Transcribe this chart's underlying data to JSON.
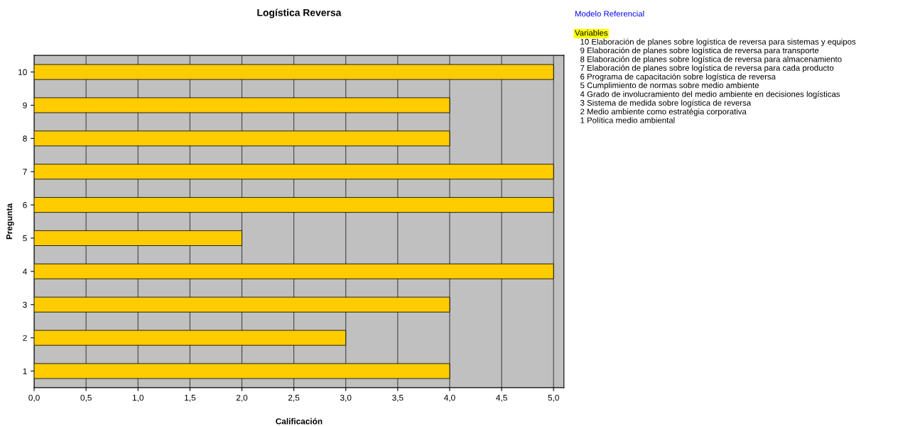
{
  "chart_data": {
    "type": "bar",
    "orientation": "horizontal",
    "title": "Logística Reversa",
    "xlabel": "Calificación",
    "ylabel": "Pregunta",
    "categories": [
      "10",
      "9",
      "8",
      "7",
      "6",
      "5",
      "4",
      "3",
      "2",
      "1"
    ],
    "values": [
      5,
      4,
      4,
      5,
      5,
      2,
      5,
      4,
      3,
      4
    ],
    "color": "#ffcc00",
    "xlim": [
      0,
      5.1
    ],
    "xticks": [
      {
        "value": 0,
        "label": "0,0"
      },
      {
        "value": 0.5,
        "label": "0,5"
      },
      {
        "value": 1,
        "label": "1,0"
      },
      {
        "value": 1.5,
        "label": "1,5"
      },
      {
        "value": 2,
        "label": "2,0"
      },
      {
        "value": 2.5,
        "label": "2,5"
      },
      {
        "value": 3,
        "label": "3,0"
      },
      {
        "value": 3.5,
        "label": "3,5"
      },
      {
        "value": 4,
        "label": "4,0"
      },
      {
        "value": 4.5,
        "label": "4,5"
      },
      {
        "value": 5,
        "label": "5,0"
      }
    ],
    "grid": "x",
    "legend": false,
    "annotations": [
      "Modelo Referencial",
      "Variables",
      "10 Elaboración de planes sobre logística de reversa para sistemas y equipos",
      "9 Elaboración de planes sobre logística de reversa para transporte",
      "8 Elaboración de planes sobre logística de reversa para almacenamiento",
      "7 Elaboración de planes sobre logística de reversa para cada producto",
      "6 Programa de capacitación sobre logística de reversa",
      "5 Cumplimiento de normas sobre medio ambiente",
      "4 Grado de involucramiento del medio ambiente en decisiones logísticas",
      "3 Sistema de medida sobre logística de reversa",
      "2 Medio ambiente como estratégia corporativa",
      "1 Política medio ambiental"
    ]
  }
}
